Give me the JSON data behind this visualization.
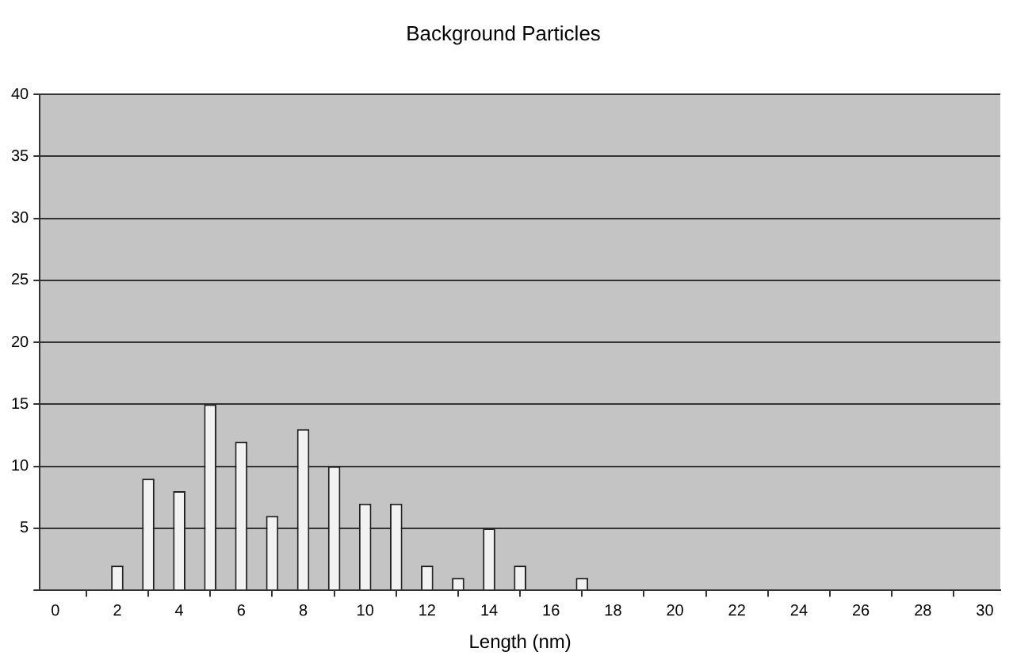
{
  "chart_data": {
    "type": "bar",
    "title": "Background Particles",
    "xlabel": "Length (nm)",
    "x": [
      2,
      3,
      4,
      5,
      6,
      7,
      8,
      9,
      10,
      11,
      12,
      13,
      14,
      15,
      17
    ],
    "values": [
      2,
      9,
      8,
      15,
      12,
      6,
      13,
      10,
      7,
      7,
      2,
      1,
      5,
      2,
      1
    ],
    "color": "#f2f2f2",
    "xlim": [
      -0.5,
      30.5
    ],
    "xticks": [
      0,
      2,
      4,
      6,
      8,
      10,
      12,
      14,
      16,
      18,
      20,
      22,
      24,
      26,
      28,
      30
    ],
    "ylim": [
      0,
      40
    ],
    "yticks": [
      {
        "value": 0,
        "label": null
      },
      5,
      10,
      15,
      20,
      25,
      30,
      35,
      40
    ],
    "grid": "y",
    "legend": false
  }
}
